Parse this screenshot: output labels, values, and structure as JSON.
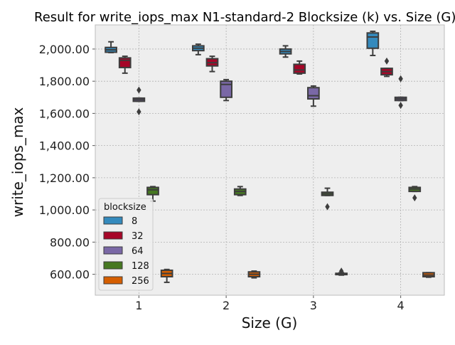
{
  "chart_data": {
    "type": "boxplot",
    "title": "Result for write_iops_max N1-standard-2 Blocksize (k) vs. Size (G)",
    "xlabel": "Size (G)",
    "ylabel": "write_iops_max",
    "categories": [
      "1",
      "2",
      "3",
      "4"
    ],
    "y_ticks": [
      "600.00",
      "800.00",
      "1,000.00",
      "1,200.00",
      "1,400.00",
      "1,600.00",
      "1,800.00",
      "2,000.00"
    ],
    "y_tick_values": [
      600,
      800,
      1000,
      1200,
      1400,
      1600,
      1800,
      2000
    ],
    "ylim": [
      470,
      2150
    ],
    "grid": true,
    "legend": {
      "title": "blocksize",
      "placement": "lower-left"
    },
    "series": [
      {
        "name": "8",
        "color": "#348abd",
        "boxes": [
          {
            "whislo": 1978,
            "q1": 1980,
            "med": 1995,
            "q3": 2010,
            "whishi": 2045,
            "fliers": []
          },
          {
            "whislo": 1965,
            "q1": 1990,
            "med": 2005,
            "q3": 2020,
            "whishi": 2030,
            "fliers": []
          },
          {
            "whislo": 1950,
            "q1": 1970,
            "med": 1985,
            "q3": 2000,
            "whishi": 2020,
            "fliers": []
          },
          {
            "whislo": 1960,
            "q1": 2005,
            "med": 2075,
            "q3": 2100,
            "whishi": 2110,
            "fliers": []
          }
        ]
      },
      {
        "name": "32",
        "color": "#a60628",
        "boxes": [
          {
            "whislo": 1850,
            "q1": 1885,
            "med": 1930,
            "q3": 1945,
            "whishi": 1955,
            "fliers": []
          },
          {
            "whislo": 1860,
            "q1": 1895,
            "med": 1915,
            "q3": 1940,
            "whishi": 1955,
            "fliers": []
          },
          {
            "whislo": 1845,
            "q1": 1850,
            "med": 1870,
            "q3": 1905,
            "whishi": 1925,
            "fliers": []
          },
          {
            "whislo": 1830,
            "q1": 1840,
            "med": 1860,
            "q3": 1880,
            "whishi": 1880,
            "fliers": [
              1925
            ]
          }
        ]
      },
      {
        "name": "64",
        "color": "#7a68a6",
        "boxes": [
          {
            "whislo": 1675,
            "q1": 1675,
            "med": 1685,
            "q3": 1695,
            "whishi": 1695,
            "fliers": [
              1745,
              1610
            ]
          },
          {
            "whislo": 1680,
            "q1": 1700,
            "med": 1780,
            "q3": 1800,
            "whishi": 1810,
            "fliers": []
          },
          {
            "whislo": 1645,
            "q1": 1690,
            "med": 1710,
            "q3": 1760,
            "whishi": 1770,
            "fliers": []
          },
          {
            "whislo": 1680,
            "q1": 1680,
            "med": 1690,
            "q3": 1700,
            "whishi": 1700,
            "fliers": [
              1815,
              1650
            ]
          }
        ]
      },
      {
        "name": "128",
        "color": "#467821",
        "boxes": [
          {
            "whislo": 1055,
            "q1": 1095,
            "med": 1125,
            "q3": 1140,
            "whishi": 1145,
            "fliers": []
          },
          {
            "whislo": 1090,
            "q1": 1095,
            "med": 1115,
            "q3": 1130,
            "whishi": 1145,
            "fliers": []
          },
          {
            "whislo": 1090,
            "q1": 1090,
            "med": 1100,
            "q3": 1110,
            "whishi": 1135,
            "fliers": [
              1020
            ]
          },
          {
            "whislo": 1115,
            "q1": 1115,
            "med": 1130,
            "q3": 1140,
            "whishi": 1145,
            "fliers": [
              1075
            ]
          }
        ]
      },
      {
        "name": "256",
        "color": "#d55e00",
        "boxes": [
          {
            "whislo": 550,
            "q1": 585,
            "med": 605,
            "q3": 625,
            "whishi": 630,
            "fliers": []
          },
          {
            "whislo": 578,
            "q1": 585,
            "med": 600,
            "q3": 615,
            "whishi": 620,
            "fliers": []
          },
          {
            "whislo": 595,
            "q1": 598,
            "med": 602,
            "q3": 606,
            "whishi": 610,
            "fliers": [
              620
            ]
          },
          {
            "whislo": 582,
            "q1": 585,
            "med": 595,
            "q3": 610,
            "whishi": 610,
            "fliers": []
          }
        ]
      }
    ]
  }
}
